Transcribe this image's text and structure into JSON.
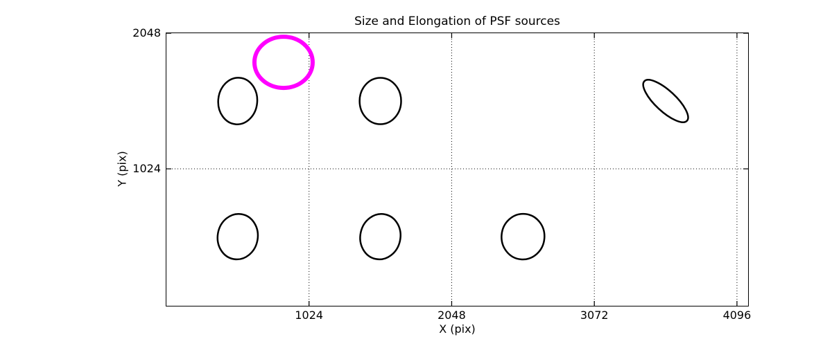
{
  "figure": {
    "background": "#ffffff"
  },
  "chart_data": {
    "type": "scatter",
    "title": "Size and Elongation of PSF sources",
    "xlabel": "X (pix)",
    "ylabel": "Y (pix)",
    "xlim": [
      0,
      4176
    ],
    "ylim": [
      -10,
      2048
    ],
    "xticks": [
      1024,
      2048,
      3072,
      4096
    ],
    "yticks": [
      1024,
      2048
    ],
    "grid": {
      "show": true,
      "style": "dotted",
      "color": "#000000",
      "x_values": [
        1024,
        2048,
        3072,
        4096
      ],
      "y_values": [
        1024
      ]
    },
    "axes_color": "#000000",
    "plot_background": "#ffffff",
    "highlight_color": "#ff00ff",
    "marker_color": "#000000",
    "legend": "none",
    "ellipses": [
      {
        "x": 841,
        "y": 1828,
        "a": 209,
        "b": 193,
        "angle": 0,
        "color": "#ff00ff",
        "lw": 6
      },
      {
        "x": 512,
        "y": 1536,
        "a": 140,
        "b": 176,
        "angle": 5,
        "color": "#000000",
        "lw": 2.5
      },
      {
        "x": 1536,
        "y": 1536,
        "a": 149,
        "b": 175,
        "angle": 0,
        "color": "#000000",
        "lw": 2.5
      },
      {
        "x": 3584,
        "y": 1536,
        "a": 209,
        "b": 78,
        "angle": 43,
        "color": "#000000",
        "lw": 2.5
      },
      {
        "x": 512,
        "y": 512,
        "a": 144,
        "b": 172,
        "angle": 10,
        "color": "#000000",
        "lw": 2.5
      },
      {
        "x": 1536,
        "y": 512,
        "a": 144,
        "b": 172,
        "angle": 12,
        "color": "#000000",
        "lw": 2.5
      },
      {
        "x": 2560,
        "y": 512,
        "a": 154,
        "b": 172,
        "angle": 5,
        "color": "#000000",
        "lw": 2.5
      }
    ]
  }
}
